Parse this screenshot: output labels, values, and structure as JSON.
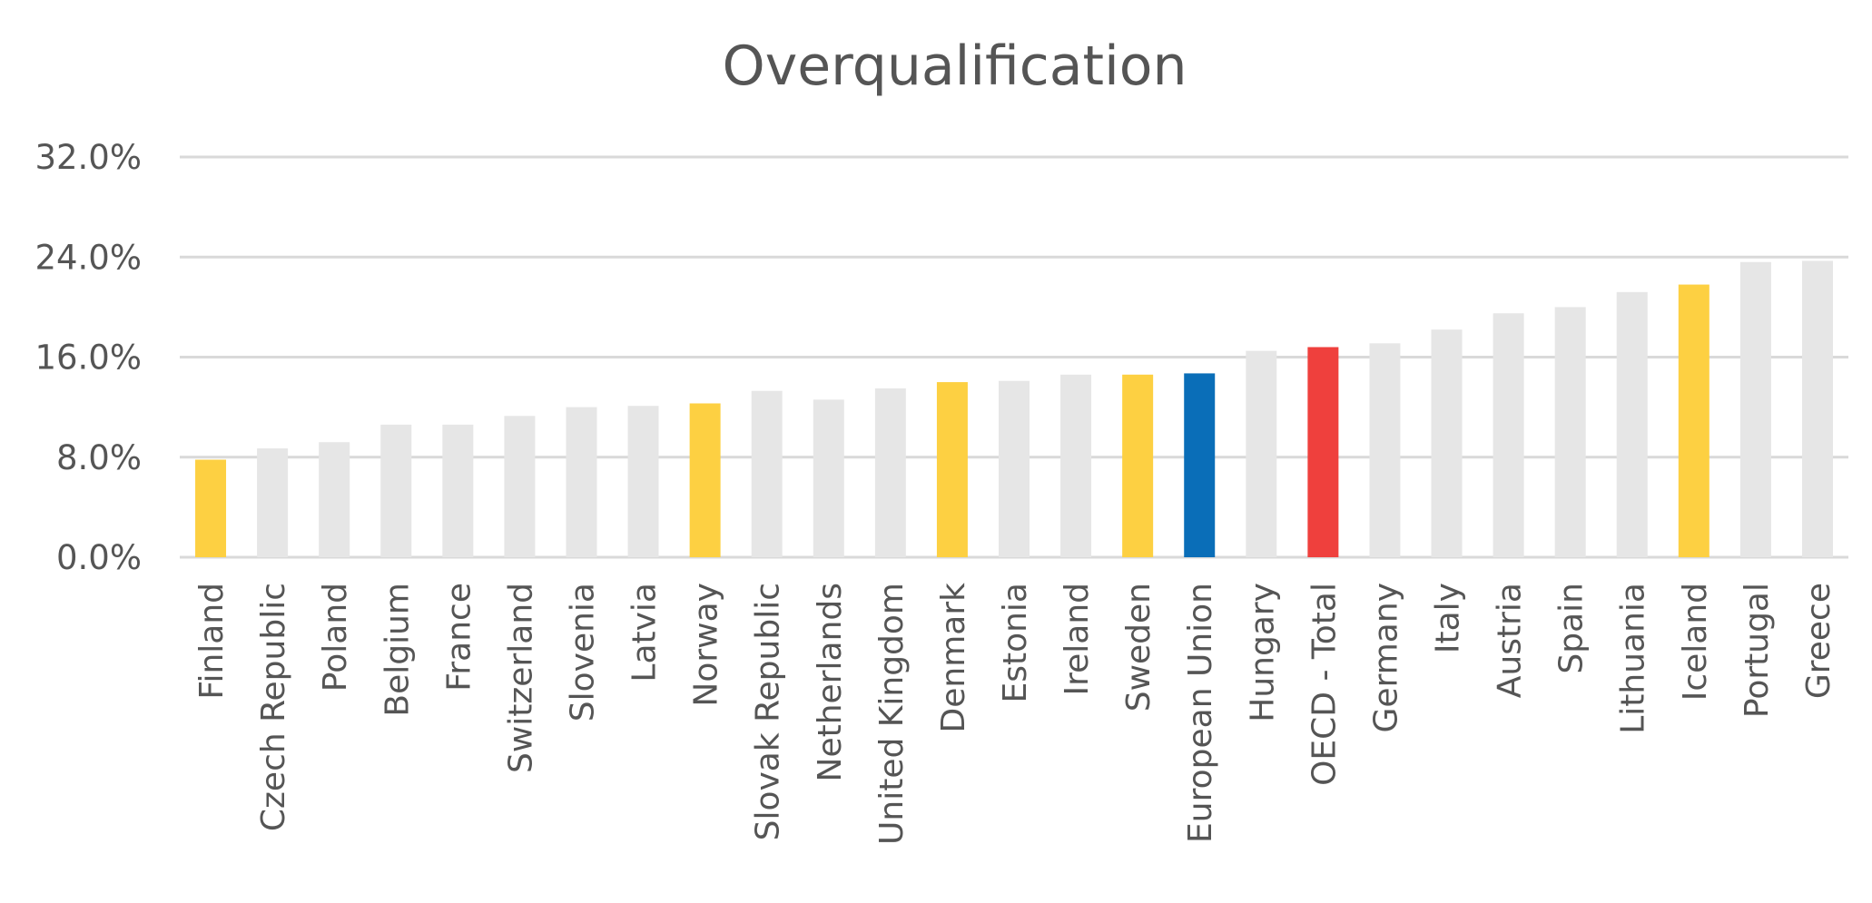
{
  "chart_data": {
    "type": "bar",
    "title": "Overqualification",
    "xlabel": "",
    "ylabel": "",
    "ylim": [
      0,
      32
    ],
    "yticks": [
      "0.0%",
      "8.0%",
      "16.0%",
      "24.0%",
      "32.0%"
    ],
    "ytick_values": [
      0,
      8,
      16,
      24,
      32
    ],
    "grid": true,
    "categories": [
      "Finland",
      "Czech Republic",
      "Poland",
      "Belgium",
      "France",
      "Switzerland",
      "Slovenia",
      "Latvia",
      "Norway",
      "Slovak Republic",
      "Netherlands",
      "United Kingdom",
      "Denmark",
      "Estonia",
      "Ireland",
      "Sweden",
      "European Union",
      "Hungary",
      "OECD - Total",
      "Germany",
      "Italy",
      "Austria",
      "Spain",
      "Lithuania",
      "Iceland",
      "Portugal",
      "Greece"
    ],
    "values": [
      7.8,
      8.7,
      9.2,
      10.6,
      10.6,
      11.3,
      12.0,
      12.1,
      12.3,
      13.3,
      12.6,
      13.5,
      14.0,
      14.1,
      14.6,
      14.6,
      14.7,
      16.5,
      16.8,
      17.1,
      18.2,
      19.5,
      20.0,
      21.2,
      21.8,
      23.6,
      23.7
    ],
    "bar_colors": [
      "#FDD042",
      "#E6E6E6",
      "#E6E6E6",
      "#E6E6E6",
      "#E6E6E6",
      "#E6E6E6",
      "#E6E6E6",
      "#E6E6E6",
      "#FDD042",
      "#E6E6E6",
      "#E6E6E6",
      "#E6E6E6",
      "#FDD042",
      "#E6E6E6",
      "#E6E6E6",
      "#FDD042",
      "#0A6EB8",
      "#E6E6E6",
      "#EF403D",
      "#E6E6E6",
      "#E6E6E6",
      "#E6E6E6",
      "#E6E6E6",
      "#E6E6E6",
      "#FDD042",
      "#E6E6E6",
      "#E6E6E6"
    ],
    "gridline_color": "#D9D9D9",
    "text_color": "#555555"
  }
}
